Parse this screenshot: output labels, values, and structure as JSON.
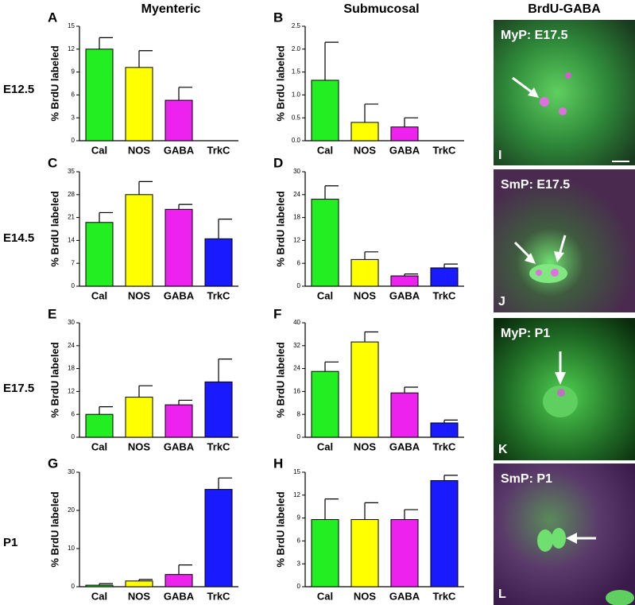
{
  "headers": [
    "Myenteric",
    "Submucosal",
    "BrdU-GABA"
  ],
  "row_labels": [
    "E12.5",
    "E14.5",
    "E17.5",
    "P1"
  ],
  "images": [
    {
      "label": "MyP:  E17.5",
      "panel": "I"
    },
    {
      "label": "SmP:  E17.5",
      "panel": "J"
    },
    {
      "label": "MyP:  P1",
      "panel": "K"
    },
    {
      "label": "SmP:  P1",
      "panel": "L"
    }
  ],
  "chart_data": [
    {
      "type": "bar",
      "panel": "A",
      "ylabel": "% BrdU labeled",
      "categories": [
        "Cal",
        "NOS",
        "GABA",
        "TrkC"
      ],
      "values": [
        12,
        9.6,
        5.3,
        null
      ],
      "errors": [
        1.5,
        2.2,
        1.7,
        null
      ],
      "colors": [
        "#22ee22",
        "#ffff00",
        "#ee22ee",
        "#1a1aff"
      ],
      "ylim": [
        0,
        15
      ],
      "yticks": [
        0,
        3,
        6,
        9,
        12,
        15
      ]
    },
    {
      "type": "bar",
      "panel": "B",
      "ylabel": "% BrdU labeled",
      "categories": [
        "Cal",
        "NOS",
        "GABA",
        "TrkC"
      ],
      "values": [
        1.32,
        0.4,
        0.3,
        null
      ],
      "errors": [
        0.83,
        0.4,
        0.2,
        null
      ],
      "colors": [
        "#22ee22",
        "#ffff00",
        "#ee22ee",
        "#1a1aff"
      ],
      "ylim": [
        0,
        2.5
      ],
      "yticks": [
        {
          "value": 0,
          "label": "0.0"
        },
        0.5,
        {
          "value": 1,
          "label": "1.0"
        },
        1.5,
        {
          "value": 2,
          "label": "2.0"
        },
        2.5
      ]
    },
    {
      "type": "bar",
      "panel": "C",
      "ylabel": "% BrdU labeled",
      "categories": [
        "Cal",
        "NOS",
        "GABA",
        "TrkC"
      ],
      "values": [
        19.5,
        28,
        23.5,
        14.5
      ],
      "errors": [
        3,
        4,
        1.5,
        6
      ],
      "colors": [
        "#22ee22",
        "#ffff00",
        "#ee22ee",
        "#1a1aff"
      ],
      "ylim": [
        0,
        35
      ],
      "yticks": [
        0,
        7,
        14,
        21,
        28,
        35
      ]
    },
    {
      "type": "bar",
      "panel": "D",
      "ylabel": "% BrdU labeled",
      "categories": [
        "Cal",
        "NOS",
        "GABA",
        "TrkC"
      ],
      "values": [
        22.8,
        7,
        2.7,
        4.8
      ],
      "errors": [
        3.5,
        2,
        0.5,
        1
      ],
      "colors": [
        "#22ee22",
        "#ffff00",
        "#ee22ee",
        "#1a1aff"
      ],
      "ylim": [
        0,
        30
      ],
      "yticks": [
        0,
        6,
        12,
        18,
        24,
        30
      ]
    },
    {
      "type": "bar",
      "panel": "E",
      "ylabel": "% BrdU labeled",
      "categories": [
        "Cal",
        "NOS",
        "GABA",
        "TrkC"
      ],
      "values": [
        6,
        10.5,
        8.5,
        14.5
      ],
      "errors": [
        2,
        3,
        1.2,
        6
      ],
      "colors": [
        "#22ee22",
        "#ffff00",
        "#ee22ee",
        "#1a1aff"
      ],
      "ylim": [
        0,
        30
      ],
      "yticks": [
        0,
        6,
        12,
        18,
        24,
        30
      ]
    },
    {
      "type": "bar",
      "panel": "F",
      "ylabel": "% BrdU labeled",
      "categories": [
        "Cal",
        "NOS",
        "GABA",
        "TrkC"
      ],
      "values": [
        23,
        33.3,
        15.5,
        5
      ],
      "errors": [
        3.3,
        3.5,
        2,
        1
      ],
      "colors": [
        "#22ee22",
        "#ffff00",
        "#ee22ee",
        "#1a1aff"
      ],
      "ylim": [
        0,
        40
      ],
      "yticks": [
        0,
        8,
        16,
        24,
        32,
        40
      ]
    },
    {
      "type": "bar",
      "panel": "G",
      "ylabel": "% BrdU labeled",
      "categories": [
        "Cal",
        "NOS",
        "GABA",
        "TrkC"
      ],
      "values": [
        0.4,
        1.5,
        3.2,
        25.5
      ],
      "errors": [
        0.4,
        0.4,
        2.5,
        3
      ],
      "colors": [
        "#22ee22",
        "#ffff00",
        "#ee22ee",
        "#1a1aff"
      ],
      "ylim": [
        0,
        30
      ],
      "yticks": [
        0,
        10,
        20,
        30
      ]
    },
    {
      "type": "bar",
      "panel": "H",
      "ylabel": "% BrdU labeled",
      "categories": [
        "Cal",
        "NOS",
        "GABA",
        "TrkC"
      ],
      "values": [
        8.8,
        8.8,
        8.8,
        13.9
      ],
      "errors": [
        2.7,
        2.2,
        1.3,
        0.7
      ],
      "colors": [
        "#22ee22",
        "#ffff00",
        "#ee22ee",
        "#1a1aff"
      ],
      "ylim": [
        0,
        15
      ],
      "yticks": [
        0,
        3,
        6,
        9,
        12,
        15
      ]
    }
  ]
}
